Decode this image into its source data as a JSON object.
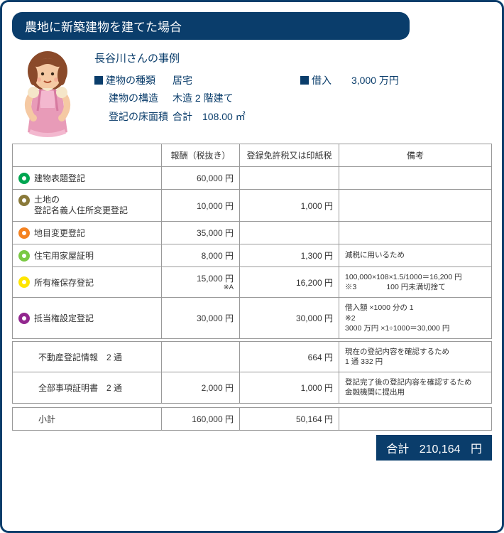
{
  "title": "農地に新築建物を建てた場合",
  "case_name": "長谷川さんの事例",
  "building": {
    "type_label": "建物の種類",
    "type_value": "居宅",
    "structure_label": "建物の構造",
    "structure_value": "木造 2 階建て",
    "area_label": "登記の床面積",
    "area_value": "合計　108.00 ㎡"
  },
  "loan": {
    "label": "借入",
    "value": "3,000 万円"
  },
  "table": {
    "headers": {
      "fee": "報酬（税抜き）",
      "tax": "登録免許税又は印紙税",
      "remark": "備考"
    },
    "rows": [
      {
        "ring": "#00a651",
        "label": "建物表題登記",
        "fee": "60,000 円",
        "tax": "",
        "remark": ""
      },
      {
        "ring": "#8a7a3a",
        "label": "土地の\n登記名義人住所変更登記",
        "fee": "10,000 円",
        "tax": "1,000 円",
        "remark": ""
      },
      {
        "ring": "#f58220",
        "label": "地目変更登記",
        "fee": "35,000 円",
        "tax": "",
        "remark": ""
      },
      {
        "ring": "#7ac943",
        "label": "住宅用家屋証明",
        "fee": "8,000 円",
        "tax": "1,300 円",
        "remark": "減税に用いるため"
      },
      {
        "ring": "#ffe600",
        "label": "所有権保存登記",
        "fee": "15,000 円",
        "fee_note": "※A",
        "tax": "16,200 円",
        "remark": "100,000×108×1.5/1000＝16,200 円\n※3　　　　100 円未満切捨て"
      },
      {
        "ring": "#92278f",
        "label": "抵当権設定登記",
        "fee": "30,000 円",
        "tax": "30,000 円",
        "remark": "借入額 ×1000 分の 1\n※2\n3000 万円 ×1÷1000＝30,000 円"
      },
      {
        "ring": "",
        "label": "不動産登記情報　2 通",
        "fee": "",
        "tax": "664 円",
        "remark": "現在の登記内容を確認するため\n1 通 332 円"
      },
      {
        "ring": "",
        "label": "全部事項証明書　2 通",
        "fee": "2,000 円",
        "tax": "1,000 円",
        "remark": "登記完了後の登記内容を確認するため　金融機関に提出用"
      }
    ],
    "subtotal": {
      "label": "小計",
      "fee": "160,000 円",
      "tax": "50,164 円"
    }
  },
  "total": {
    "label": "合計",
    "value": "210,164",
    "unit": "円"
  },
  "colors": {
    "frame": "#0a3d6b"
  },
  "avatar": {
    "skin": "#f5c9a3",
    "hair": "#8a4a2a",
    "apron": "#e89bb8",
    "dress": "#c44d6a",
    "inner": "#f5e6c9"
  }
}
